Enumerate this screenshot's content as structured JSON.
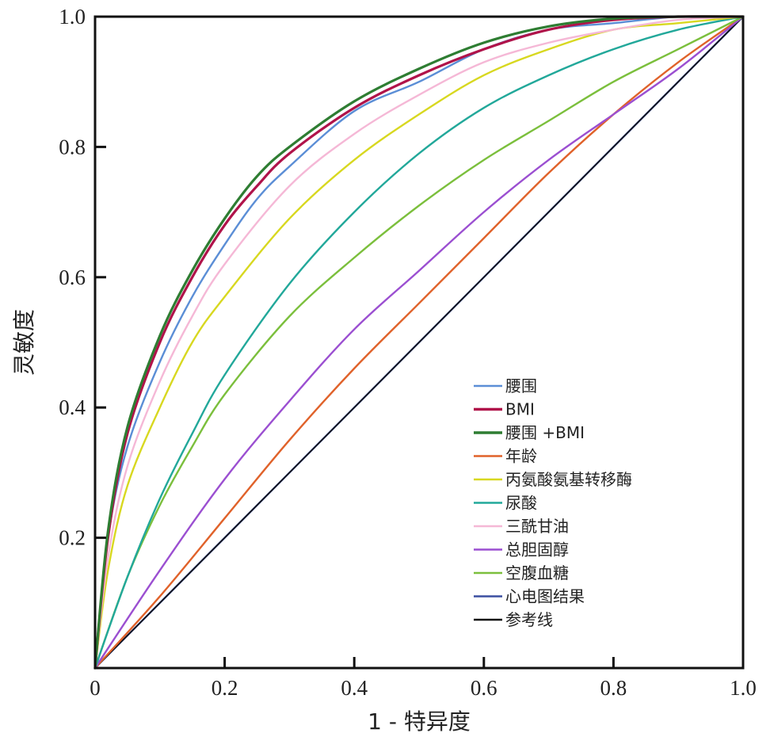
{
  "chart_data": {
    "type": "line",
    "xlabel": "1 - 特异度",
    "ylabel": "灵敏度",
    "xlim": [
      0,
      1
    ],
    "ylim": [
      0,
      1
    ],
    "x_tick_labels": [
      "0",
      "0.2",
      "0.4",
      "0.6",
      "0.8",
      "1.0"
    ],
    "y_tick_labels": [
      "0.2",
      "0.4",
      "0.6",
      "0.8",
      "1.0"
    ],
    "grid": false,
    "legend_position": "bottom-right",
    "series": [
      {
        "name": "腰围",
        "color": "#5b8ed6",
        "x": [
          0,
          0.02,
          0.05,
          0.1,
          0.15,
          0.2,
          0.25,
          0.3,
          0.4,
          0.5,
          0.6,
          0.7,
          0.8,
          0.9,
          1.0
        ],
        "y": [
          0,
          0.2,
          0.34,
          0.47,
          0.57,
          0.65,
          0.72,
          0.77,
          0.855,
          0.9,
          0.95,
          0.98,
          0.99,
          1.0,
          1.0
        ]
      },
      {
        "name": "BMI",
        "color": "#b0134a",
        "x": [
          0,
          0.02,
          0.05,
          0.1,
          0.15,
          0.2,
          0.25,
          0.3,
          0.4,
          0.5,
          0.6,
          0.7,
          0.8,
          0.9,
          1.0
        ],
        "y": [
          0,
          0.2,
          0.36,
          0.5,
          0.6,
          0.68,
          0.74,
          0.79,
          0.86,
          0.91,
          0.95,
          0.98,
          0.995,
          1.0,
          1.0
        ]
      },
      {
        "name": "腰围 +BMI",
        "color": "#2e7d32",
        "x": [
          0,
          0.02,
          0.05,
          0.1,
          0.15,
          0.2,
          0.25,
          0.3,
          0.4,
          0.5,
          0.6,
          0.7,
          0.8,
          0.9,
          1.0
        ],
        "y": [
          0,
          0.21,
          0.37,
          0.51,
          0.61,
          0.69,
          0.755,
          0.8,
          0.87,
          0.92,
          0.96,
          0.985,
          0.997,
          1.0,
          1.0
        ]
      },
      {
        "name": "年龄",
        "color": "#e0622a",
        "x": [
          0,
          0.1,
          0.2,
          0.3,
          0.4,
          0.5,
          0.6,
          0.7,
          0.8,
          0.9,
          1.0
        ],
        "y": [
          0,
          0.11,
          0.23,
          0.35,
          0.46,
          0.56,
          0.66,
          0.76,
          0.85,
          0.93,
          1.0
        ]
      },
      {
        "name": "丙氨酸氨基转移酶",
        "color": "#d8d820",
        "x": [
          0,
          0.02,
          0.05,
          0.1,
          0.15,
          0.2,
          0.3,
          0.4,
          0.5,
          0.6,
          0.7,
          0.8,
          0.9,
          1.0
        ],
        "y": [
          0,
          0.15,
          0.28,
          0.4,
          0.5,
          0.57,
          0.69,
          0.78,
          0.85,
          0.91,
          0.95,
          0.98,
          0.99,
          1.0
        ]
      },
      {
        "name": "尿酸",
        "color": "#22a89a",
        "x": [
          0,
          0.05,
          0.1,
          0.15,
          0.2,
          0.3,
          0.4,
          0.5,
          0.6,
          0.7,
          0.8,
          0.9,
          1.0
        ],
        "y": [
          0,
          0.14,
          0.26,
          0.36,
          0.45,
          0.59,
          0.7,
          0.79,
          0.86,
          0.91,
          0.95,
          0.98,
          1.0
        ]
      },
      {
        "name": "三酰甘油",
        "color": "#f5b8d6",
        "x": [
          0,
          0.02,
          0.05,
          0.1,
          0.15,
          0.2,
          0.3,
          0.4,
          0.5,
          0.6,
          0.7,
          0.8,
          0.9,
          1.0
        ],
        "y": [
          0,
          0.17,
          0.31,
          0.44,
          0.54,
          0.62,
          0.74,
          0.82,
          0.88,
          0.93,
          0.96,
          0.98,
          0.995,
          1.0
        ]
      },
      {
        "name": "总胆固醇",
        "color": "#9b4fd1",
        "x": [
          0,
          0.1,
          0.2,
          0.3,
          0.4,
          0.5,
          0.6,
          0.7,
          0.8,
          0.9,
          1.0
        ],
        "y": [
          0,
          0.15,
          0.29,
          0.41,
          0.52,
          0.61,
          0.7,
          0.78,
          0.85,
          0.92,
          1.0
        ]
      },
      {
        "name": "空腹血糖",
        "color": "#7bbf3c",
        "x": [
          0,
          0.05,
          0.1,
          0.15,
          0.2,
          0.3,
          0.4,
          0.5,
          0.6,
          0.7,
          0.8,
          0.9,
          1.0
        ],
        "y": [
          0,
          0.14,
          0.25,
          0.34,
          0.42,
          0.54,
          0.63,
          0.71,
          0.78,
          0.84,
          0.9,
          0.95,
          1.0
        ]
      },
      {
        "name": "心电图结果",
        "color": "#3a4fa0",
        "x": [
          0,
          0.2,
          0.4,
          0.6,
          0.8,
          1.0
        ],
        "y": [
          0,
          0.2,
          0.4,
          0.6,
          0.8,
          1.0
        ]
      },
      {
        "name": "参考线",
        "color": "#111111",
        "x": [
          0,
          1
        ],
        "y": [
          0,
          1
        ]
      }
    ]
  }
}
